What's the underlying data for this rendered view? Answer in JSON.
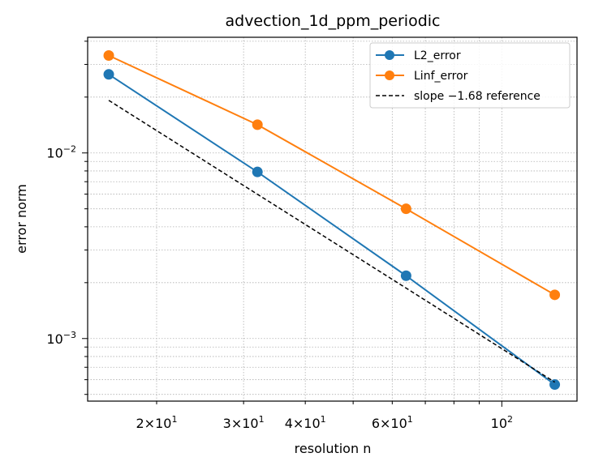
{
  "chart_data": {
    "type": "line",
    "title": "advection_1d_ppm_periodic",
    "xlabel": "resolution n",
    "ylabel": "error norm",
    "xscale": "log",
    "yscale": "log",
    "xlim": [
      14.5,
      142
    ],
    "ylim": [
      0.00046,
      0.042
    ],
    "grid": true,
    "legend": "top-right",
    "x": [
      16,
      32,
      64,
      128
    ],
    "xticks": [
      {
        "value": 20,
        "base": "2×10",
        "exp": "1"
      },
      {
        "value": 30,
        "base": "3×10",
        "exp": "1"
      },
      {
        "value": 40,
        "base": "4×10",
        "exp": "1"
      },
      {
        "value": 60,
        "base": "6×10",
        "exp": "1"
      },
      {
        "value": 100,
        "base": "10",
        "exp": "2"
      }
    ],
    "yticks": [
      {
        "value": 0.01,
        "base": "10",
        "exp": "−2"
      },
      {
        "value": 0.001,
        "base": "10",
        "exp": "−3"
      }
    ],
    "series": [
      {
        "name": "L2_error",
        "color": "#1f77b4",
        "style": "line-marker",
        "values": [
          0.0265,
          0.0079,
          0.00218,
          0.000565
        ]
      },
      {
        "name": "Linf_error",
        "color": "#ff7f0e",
        "style": "line-marker",
        "values": [
          0.0335,
          0.0142,
          0.005,
          0.00172
        ]
      },
      {
        "name": "slope −1.68 reference",
        "color": "#000000",
        "style": "dashed",
        "values": [
          0.0192,
          0.00599,
          0.00187,
          0.000582
        ]
      }
    ]
  }
}
